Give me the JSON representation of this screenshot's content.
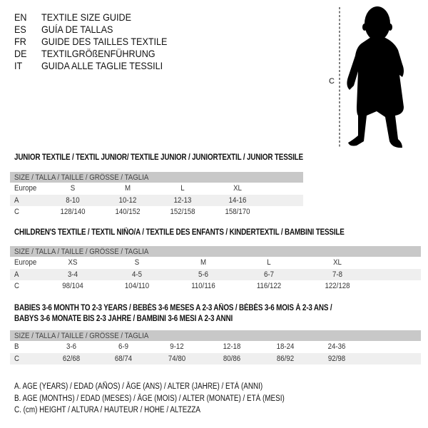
{
  "languages": [
    {
      "code": "EN",
      "text": "TEXTILE SIZE GUIDE"
    },
    {
      "code": "ES",
      "text": "GUÍA DE TALLAS"
    },
    {
      "code": "FR",
      "text": "GUIDE DES TAILLES TEXTILE"
    },
    {
      "code": "DE",
      "text": "TEXTILGRÖßENFÜHRUNG"
    },
    {
      "code": "IT",
      "text": "GUIDA ALLE TAGLIE TESSILI"
    }
  ],
  "figure": {
    "measure_label": "C"
  },
  "size_header": "SIZE / TALLA / TAILLE / GRÖSSE / TAGLIA",
  "tables": [
    {
      "title": [
        "JUNIOR TEXTILE / TEXTIL JUNIOR/ TEXTILE JUNIOR / JUNIORTEXTIL / JUNIOR TESSILE"
      ],
      "rows": [
        {
          "label": "Europe",
          "values": [
            "S",
            "M",
            "L",
            "XL"
          ]
        },
        {
          "label": "A",
          "values": [
            "8-10",
            "10-12",
            "12-13",
            "14-16"
          ]
        },
        {
          "label": "C",
          "values": [
            "128/140",
            "140/152",
            "152/158",
            "158/170"
          ]
        }
      ]
    },
    {
      "title": [
        "CHILDREN'S TEXTILE / TEXTIL NIÑO/A / TEXTILE DES ENFANTS / KINDERTEXTIL / BAMBINI TESSILE"
      ],
      "rows": [
        {
          "label": "Europe",
          "values": [
            "XS",
            "S",
            "M",
            "L",
            "XL"
          ]
        },
        {
          "label": "A",
          "values": [
            "3-4",
            "4-5",
            "5-6",
            "6-7",
            "7-8"
          ]
        },
        {
          "label": "C",
          "values": [
            "98/104",
            "104/110",
            "110/116",
            "116/122",
            "122/128"
          ]
        }
      ]
    },
    {
      "title": [
        "BABIES 3-6 MONTH TO 2-3 YEARS / BEBÉS 3-6 MESES A 2-3 AÑOS / BÉBÉS 3-6 MOIS À 2-3 ANS /",
        "BABYS 3-6 MONATE BIS 2-3 JAHRE / BAMBINI 3-6 MESI A 2-3 ANNI"
      ],
      "rows": [
        {
          "label": "B",
          "values": [
            "3-6",
            "6-9",
            "9-12",
            "12-18",
            "18-24",
            "24-36"
          ]
        },
        {
          "label": "C",
          "values": [
            "62/68",
            "68/74",
            "74/80",
            "80/86",
            "86/92",
            "92/98"
          ]
        }
      ]
    }
  ],
  "legend": [
    "A. AGE (YEARS) / EDAD (AÑOS) / ÂGE (ANS) / ALTER (JAHRE) / ETÀ (ANNI)",
    "B. AGE (MONTHS) / EDAD (MESES) / ÂGE (MOIS) / ALTER (MONATE) / ETÀ (MESI)",
    "C. (cm) HEIGHT / ALTURA / HAUTEUR / HÖHE / ALTEZZA"
  ]
}
